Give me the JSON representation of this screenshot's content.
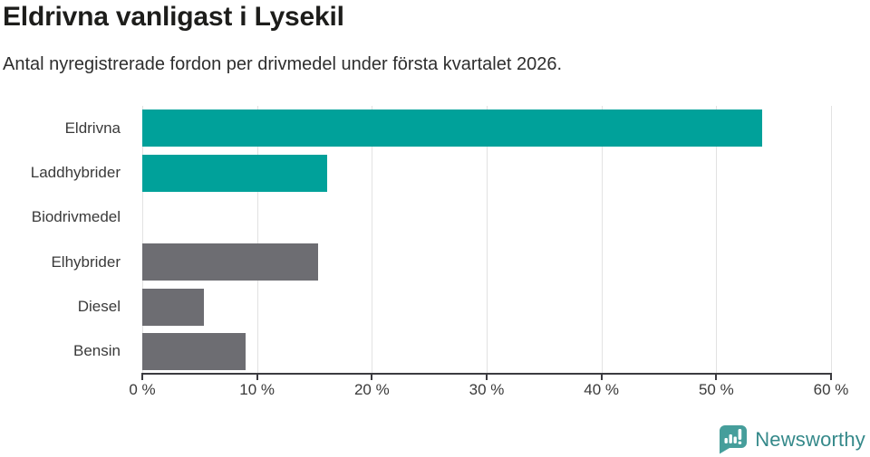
{
  "header": {
    "title": "Eldrivna vanligast i Lysekil",
    "subtitle": "Antal nyregistrerade fordon per drivmedel under första kvartalet 2026."
  },
  "colors": {
    "teal": "#00a19a",
    "gray": "#6d6d72",
    "axis": "#3b3b40",
    "grid": "#e2e2e2",
    "title": "#1d1d1b",
    "subtitle": "#2e2e2e",
    "label": "#3a3a3a",
    "logo_icon": "#469e9b",
    "logo_text": "#35898a"
  },
  "chart_data": {
    "type": "bar",
    "orientation": "horizontal",
    "title": "Eldrivna vanligast i Lysekil",
    "subtitle": "Antal nyregistrerade fordon per drivmedel under första kvartalet 2026.",
    "categories": [
      "Eldrivna",
      "Laddhybrider",
      "Biodrivmedel",
      "Elhybrider",
      "Diesel",
      "Bensin"
    ],
    "values": [
      54,
      16.1,
      0,
      15.3,
      5.4,
      9
    ],
    "bar_colors": [
      "#00a19a",
      "#00a19a",
      "#6d6d72",
      "#6d6d72",
      "#6d6d72",
      "#6d6d72"
    ],
    "xlim": [
      0,
      60
    ],
    "ticks": [
      0,
      10,
      20,
      30,
      40,
      50,
      60
    ],
    "tick_labels": [
      "0 %",
      "10 %",
      "20 %",
      "30 %",
      "40 %",
      "50 %",
      "60 %"
    ],
    "xlabel": "",
    "ylabel": "",
    "grid": true,
    "legend": "none"
  },
  "footer": {
    "brand": "Newsworthy",
    "logo_icon": "bar-chart-speech-bubble-icon"
  }
}
